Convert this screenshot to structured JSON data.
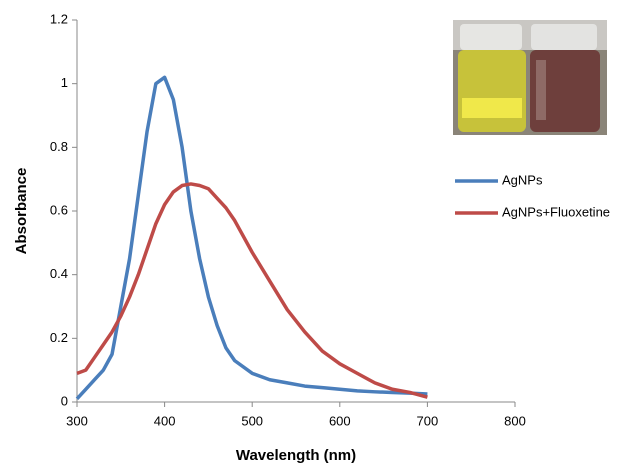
{
  "chart_data": {
    "type": "line",
    "x_label": "Wavelength (nm)",
    "y_label": "Absorbance",
    "x": [
      300,
      310,
      320,
      330,
      340,
      350,
      360,
      370,
      380,
      390,
      400,
      410,
      420,
      430,
      440,
      450,
      460,
      470,
      480,
      500,
      520,
      540,
      560,
      580,
      600,
      620,
      640,
      660,
      680,
      700
    ],
    "series": [
      {
        "name": "AgNPs",
        "color": "#4a7ebb",
        "values": [
          0.01,
          0.04,
          0.07,
          0.1,
          0.15,
          0.3,
          0.45,
          0.65,
          0.85,
          1.0,
          1.02,
          0.95,
          0.8,
          0.6,
          0.45,
          0.33,
          0.24,
          0.17,
          0.13,
          0.09,
          0.07,
          0.06,
          0.05,
          0.045,
          0.04,
          0.035,
          0.032,
          0.03,
          0.028,
          0.025
        ]
      },
      {
        "name": "AgNPs+Fluoxetine",
        "color": "#be4b48",
        "values": [
          0.09,
          0.1,
          0.14,
          0.18,
          0.22,
          0.27,
          0.33,
          0.4,
          0.48,
          0.56,
          0.62,
          0.66,
          0.68,
          0.685,
          0.68,
          0.67,
          0.64,
          0.61,
          0.57,
          0.47,
          0.38,
          0.29,
          0.22,
          0.16,
          0.12,
          0.09,
          0.06,
          0.04,
          0.03,
          0.015
        ]
      }
    ],
    "xlim": [
      300,
      800
    ],
    "xticks": [
      300,
      400,
      500,
      600,
      700,
      800
    ],
    "ylim": [
      0,
      1.2
    ],
    "yticks": [
      0,
      0.2,
      0.4,
      0.6,
      0.8,
      1,
      1.2
    ],
    "grid": false,
    "legend": "right"
  }
}
